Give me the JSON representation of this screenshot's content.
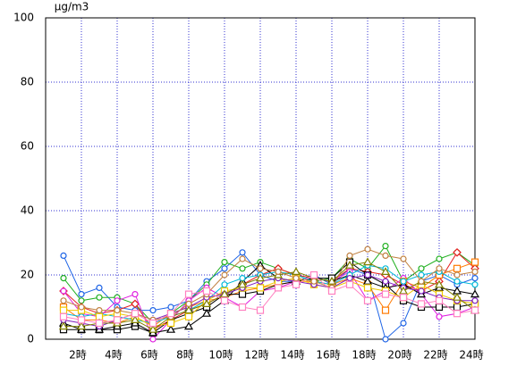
{
  "chart_data": {
    "type": "line",
    "y_label": "μg/m3",
    "categories": [
      null,
      "2時",
      null,
      "4時",
      null,
      "6時",
      null,
      "8時",
      null,
      "10時",
      null,
      "12時",
      null,
      "14時",
      null,
      "16時",
      null,
      "18時",
      null,
      "20時",
      null,
      "22時",
      null,
      "24時"
    ],
    "ylim": [
      0,
      100
    ],
    "yticks": [
      0,
      20,
      40,
      60,
      80,
      100
    ],
    "grid": true,
    "series": [
      {
        "color": "#1e64e6",
        "marker": "circle",
        "values": [
          26,
          14,
          16,
          10,
          9,
          9,
          10,
          12,
          18,
          22,
          27,
          20,
          18,
          18,
          20,
          17,
          22,
          20,
          0,
          5,
          18,
          20,
          17,
          19
        ]
      },
      {
        "color": "#20b020",
        "marker": "circle",
        "values": [
          19,
          12,
          13,
          13,
          11,
          5,
          8,
          12,
          17,
          24,
          22,
          24,
          22,
          20,
          18,
          19,
          25,
          22,
          29,
          18,
          22,
          25,
          27,
          23
        ]
      },
      {
        "color": "#e62020",
        "marker": "diamond",
        "values": [
          15,
          10,
          8,
          9,
          11,
          3,
          6,
          9,
          11,
          14,
          17,
          20,
          22,
          20,
          19,
          18,
          22,
          21,
          20,
          17,
          15,
          18,
          27,
          22
        ]
      },
      {
        "color": "#e020e0",
        "marker": "circle",
        "values": [
          15,
          8,
          7,
          12,
          14,
          0,
          6,
          12,
          16,
          13,
          10,
          15,
          16,
          18,
          19,
          18,
          21,
          12,
          15,
          19,
          14,
          7,
          8,
          10
        ]
      },
      {
        "color": "#ff7a00",
        "marker": "square",
        "values": [
          10,
          6,
          6,
          5,
          7,
          4,
          8,
          10,
          12,
          13,
          15,
          16,
          17,
          18,
          18,
          17,
          19,
          17,
          9,
          18,
          16,
          20,
          22,
          24
        ]
      },
      {
        "color": "#000000",
        "marker": "square",
        "values": [
          3,
          3,
          3,
          3,
          4,
          2,
          6,
          8,
          10,
          14,
          14,
          15,
          17,
          18,
          19,
          19,
          24,
          20,
          17,
          12,
          10,
          10,
          10,
          11
        ]
      },
      {
        "color": "#000000",
        "marker": "triangle",
        "values": [
          5,
          3,
          3,
          4,
          5,
          2,
          3,
          4,
          8,
          12,
          18,
          23,
          19,
          18,
          19,
          18,
          20,
          18,
          16,
          17,
          14,
          16,
          15,
          14
        ]
      },
      {
        "color": "#00b8d8",
        "marker": "circle",
        "values": [
          8,
          7,
          8,
          7,
          6,
          5,
          7,
          9,
          12,
          17,
          19,
          20,
          21,
          20,
          18,
          17,
          20,
          23,
          22,
          18,
          20,
          21,
          18,
          17
        ]
      },
      {
        "color": "#f0c800",
        "marker": "square",
        "values": [
          9,
          9,
          7,
          8,
          7,
          4,
          5,
          7,
          12,
          15,
          16,
          16,
          18,
          19,
          17,
          16,
          18,
          16,
          15,
          13,
          17,
          14,
          12,
          11
        ]
      },
      {
        "color": "#8020c0",
        "marker": "circle",
        "values": [
          6,
          5,
          4,
          6,
          8,
          6,
          8,
          10,
          13,
          14,
          16,
          18,
          19,
          18,
          17,
          16,
          19,
          20,
          18,
          16,
          15,
          13,
          12,
          12
        ]
      },
      {
        "color": "#808000",
        "marker": "triangle",
        "values": [
          4,
          4,
          5,
          5,
          6,
          3,
          7,
          9,
          11,
          14,
          17,
          19,
          20,
          21,
          19,
          18,
          23,
          24,
          21,
          15,
          18,
          17,
          13,
          9
        ]
      },
      {
        "color": "#c08040",
        "marker": "circle",
        "values": [
          12,
          10,
          9,
          9,
          8,
          6,
          7,
          11,
          14,
          20,
          25,
          22,
          21,
          19,
          18,
          16,
          26,
          28,
          26,
          25,
          18,
          22,
          20,
          21
        ]
      },
      {
        "color": "#ff80c0",
        "marker": "square",
        "values": [
          7,
          6,
          5,
          6,
          8,
          5,
          8,
          14,
          15,
          12,
          10,
          9,
          16,
          17,
          20,
          15,
          17,
          12,
          14,
          13,
          11,
          12,
          8,
          9
        ]
      }
    ]
  }
}
